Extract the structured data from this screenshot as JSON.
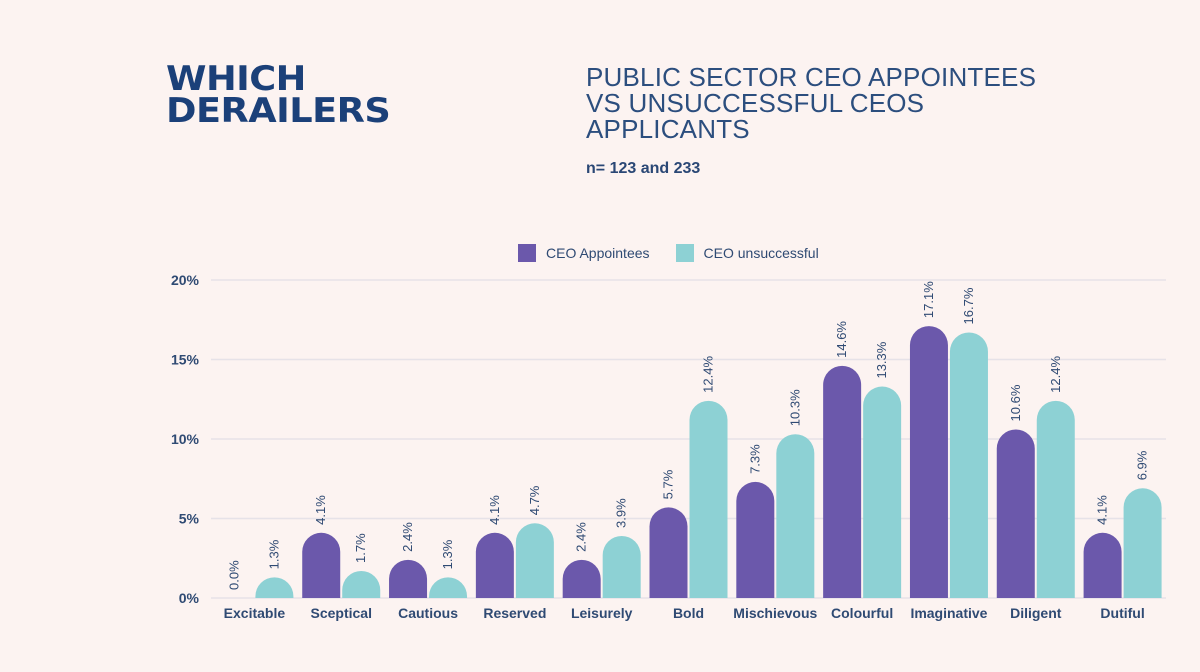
{
  "header": {
    "headline_lines": [
      "WHICH",
      "DERAILERS"
    ],
    "subtitle_lines": [
      "PUBLIC SECTOR CEO APPOINTEES",
      "VS UNSUCCESSFUL CEOS",
      "APPLICANTS"
    ],
    "sample_note": "n= 123 and 233"
  },
  "colors": {
    "background": "#fcf3f1",
    "headline": "#1b4079",
    "appointees": "#6b58ab",
    "unsuccessful": "#8dd1d4",
    "gridline": "#e6e2e8",
    "text": "#2f4a73"
  },
  "chart_data": {
    "type": "bar",
    "title": "PUBLIC SECTOR CEO APPOINTEES VS UNSUCCESSFUL CEOS APPLICANTS",
    "subtitle": "n= 123 and 233",
    "xlabel": "",
    "ylabel": "",
    "ylim": [
      0,
      20
    ],
    "yticks": [
      0,
      5,
      10,
      15,
      20
    ],
    "ytick_labels": [
      "0%",
      "5%",
      "10%",
      "15%",
      "20%"
    ],
    "grid": true,
    "legend_position": "top-center",
    "categories": [
      "Excitable",
      "Sceptical",
      "Cautious",
      "Reserved",
      "Leisurely",
      "Bold",
      "Mischievous",
      "Colourful",
      "Imaginative",
      "Diligent",
      "Dutiful"
    ],
    "series": [
      {
        "name": "CEO Appointees",
        "color": "#6b58ab",
        "values": [
          0.0,
          4.1,
          2.4,
          4.1,
          2.4,
          5.7,
          7.3,
          14.6,
          17.1,
          10.6,
          4.1
        ],
        "labels": [
          "0.0%",
          "4.1%",
          "2.4%",
          "4.1%",
          "2.4%",
          "5.7%",
          "7.3%",
          "14.6%",
          "17.1%",
          "10.6%",
          "4.1%"
        ]
      },
      {
        "name": "CEO unsuccessful",
        "color": "#8dd1d4",
        "values": [
          1.3,
          1.7,
          1.3,
          4.7,
          3.9,
          12.4,
          10.3,
          13.3,
          16.7,
          12.4,
          6.9
        ],
        "labels": [
          "1.3%",
          "1.7%",
          "1.3%",
          "4.7%",
          "3.9%",
          "12.4%",
          "10.3%",
          "13.3%",
          "16.7%",
          "12.4%",
          "6.9%"
        ]
      }
    ]
  }
}
